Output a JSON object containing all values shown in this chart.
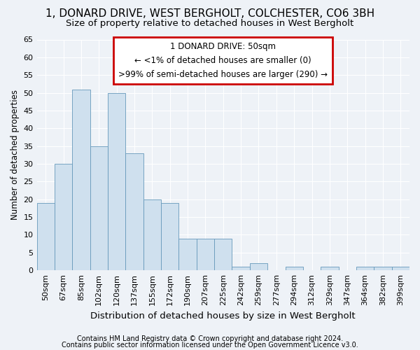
{
  "title1": "1, DONARD DRIVE, WEST BERGHOLT, COLCHESTER, CO6 3BH",
  "title2": "Size of property relative to detached houses in West Bergholt",
  "xlabel": "Distribution of detached houses by size in West Bergholt",
  "ylabel": "Number of detached properties",
  "categories": [
    "50sqm",
    "67sqm",
    "85sqm",
    "102sqm",
    "120sqm",
    "137sqm",
    "155sqm",
    "172sqm",
    "190sqm",
    "207sqm",
    "225sqm",
    "242sqm",
    "259sqm",
    "277sqm",
    "294sqm",
    "312sqm",
    "329sqm",
    "347sqm",
    "364sqm",
    "382sqm",
    "399sqm"
  ],
  "values": [
    19,
    30,
    51,
    35,
    50,
    33,
    20,
    19,
    9,
    9,
    9,
    1,
    2,
    0,
    1,
    0,
    1,
    0,
    1,
    1,
    1
  ],
  "bar_color": "#cfe0ee",
  "bar_edge_color": "#6699bb",
  "annotation_box_color": "#ffffff",
  "annotation_box_edge": "#cc0000",
  "annotation_line1": "1 DONARD DRIVE: 50sqm",
  "annotation_line2": "← <1% of detached houses are smaller (0)",
  "annotation_line3": ">99% of semi-detached houses are larger (290) →",
  "footer1": "Contains HM Land Registry data © Crown copyright and database right 2024.",
  "footer2": "Contains public sector information licensed under the Open Government Licence v3.0.",
  "ylim": [
    0,
    65
  ],
  "yticks": [
    0,
    5,
    10,
    15,
    20,
    25,
    30,
    35,
    40,
    45,
    50,
    55,
    60,
    65
  ],
  "background_color": "#eef2f7",
  "grid_color": "#ffffff",
  "title1_fontsize": 11,
  "title2_fontsize": 9.5,
  "xlabel_fontsize": 9.5,
  "ylabel_fontsize": 8.5,
  "tick_fontsize": 8,
  "annotation_fontsize": 8.5,
  "footer_fontsize": 7
}
